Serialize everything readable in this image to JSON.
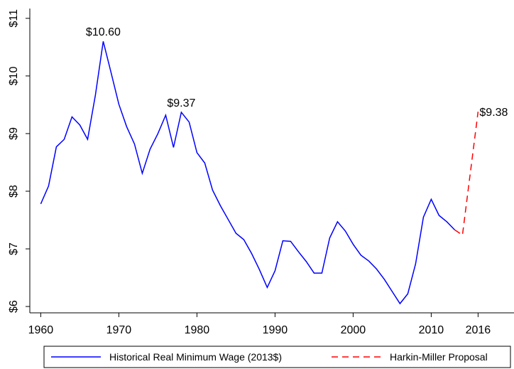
{
  "chart_data": {
    "type": "line",
    "x": [
      1960,
      1961,
      1962,
      1963,
      1964,
      1965,
      1966,
      1967,
      1968,
      1969,
      1970,
      1971,
      1972,
      1973,
      1974,
      1975,
      1976,
      1977,
      1978,
      1979,
      1980,
      1981,
      1982,
      1983,
      1984,
      1985,
      1986,
      1987,
      1988,
      1989,
      1990,
      1991,
      1992,
      1993,
      1994,
      1995,
      1996,
      1997,
      1998,
      1999,
      2000,
      2001,
      2002,
      2003,
      2004,
      2005,
      2006,
      2007,
      2008,
      2009,
      2010,
      2011,
      2012,
      2013
    ],
    "series": [
      {
        "name": "Historical Real Minimum Wage (2013$)",
        "color": "#0000ff",
        "dash": false,
        "x": [
          1960,
          1961,
          1962,
          1963,
          1964,
          1965,
          1966,
          1967,
          1968,
          1969,
          1970,
          1971,
          1972,
          1973,
          1974,
          1975,
          1976,
          1977,
          1978,
          1979,
          1980,
          1981,
          1982,
          1983,
          1984,
          1985,
          1986,
          1987,
          1988,
          1989,
          1990,
          1991,
          1992,
          1993,
          1994,
          1995,
          1996,
          1997,
          1998,
          1999,
          2000,
          2001,
          2002,
          2003,
          2004,
          2005,
          2006,
          2007,
          2008,
          2009,
          2010,
          2011,
          2012,
          2013
        ],
        "values": [
          7.78,
          8.09,
          8.77,
          8.9,
          9.29,
          9.15,
          8.9,
          9.67,
          10.6,
          10.06,
          9.51,
          9.12,
          8.82,
          8.31,
          8.73,
          9.0,
          9.32,
          8.76,
          9.37,
          9.2,
          8.67,
          8.49,
          8.02,
          7.75,
          7.51,
          7.27,
          7.16,
          6.92,
          6.64,
          6.33,
          6.62,
          7.14,
          7.13,
          6.95,
          6.78,
          6.58,
          6.58,
          7.19,
          7.47,
          7.31,
          7.08,
          6.89,
          6.79,
          6.65,
          6.47,
          6.26,
          6.05,
          6.22,
          6.74,
          7.55,
          7.86,
          7.58,
          7.47,
          7.33
        ]
      },
      {
        "name": "Harkin-Miller Proposal",
        "color": "#ff0000",
        "dash": true,
        "x": [
          2013,
          2014,
          2016
        ],
        "values": [
          7.33,
          7.24,
          9.38
        ]
      }
    ],
    "annotations": [
      {
        "text": "$10.60",
        "x": 1968,
        "y": 10.6
      },
      {
        "text": "$9.37",
        "x": 1978,
        "y": 9.37
      },
      {
        "text": "$9.38",
        "x": 2016,
        "y": 9.38
      }
    ],
    "xlim": [
      1958.6,
      2020.6
    ],
    "xticks": [
      1960,
      1970,
      1980,
      1990,
      2000,
      2010,
      2016
    ],
    "ylim": [
      5.89,
      11.17
    ],
    "yticks": [
      {
        "value": 6,
        "label": "$6"
      },
      {
        "value": 7,
        "label": "$7"
      },
      {
        "value": 8,
        "label": "$8"
      },
      {
        "value": 9,
        "label": "$9"
      },
      {
        "value": 10,
        "label": "$10"
      },
      {
        "value": 11,
        "label": "$11"
      }
    ],
    "grid": false,
    "legend": "bottom"
  }
}
